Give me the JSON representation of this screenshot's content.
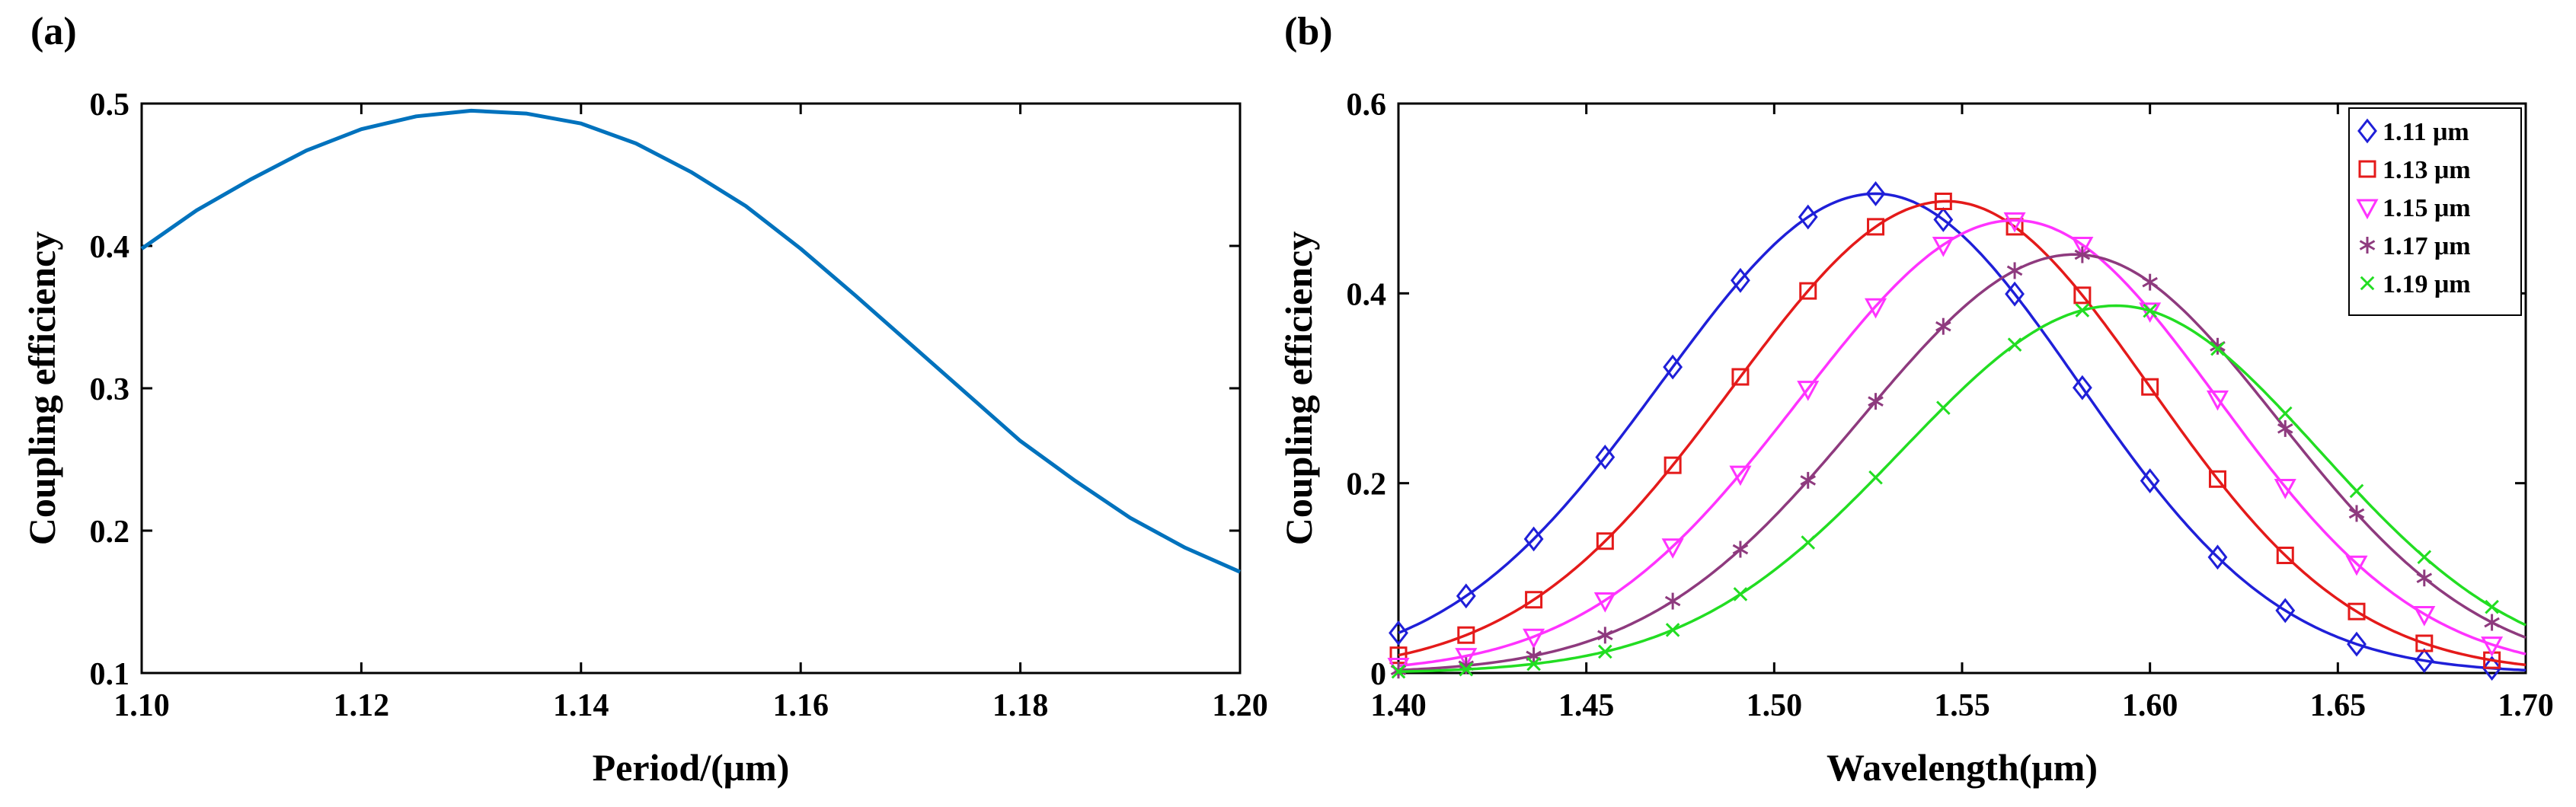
{
  "chart_data": [
    {
      "panel_label": "(a)",
      "type": "line",
      "xlabel": "Period/(μm)",
      "ylabel": "Coupling efficiency",
      "xlim": [
        1.1,
        1.2
      ],
      "ylim": [
        0.1,
        0.5
      ],
      "xticks": [
        "1.10",
        "1.12",
        "1.14",
        "1.16",
        "1.18",
        "1.20"
      ],
      "yticks": [
        "0.1",
        "0.2",
        "0.3",
        "0.4",
        "0.5"
      ],
      "series": [
        {
          "name": "Coupling efficiency",
          "color": "#0072BD",
          "x": [
            1.1,
            1.105,
            1.11,
            1.115,
            1.12,
            1.125,
            1.13,
            1.135,
            1.14,
            1.145,
            1.15,
            1.155,
            1.16,
            1.165,
            1.17,
            1.175,
            1.18,
            1.185,
            1.19,
            1.195,
            1.2
          ],
          "y": [
            0.398,
            0.425,
            0.447,
            0.467,
            0.482,
            0.491,
            0.495,
            0.493,
            0.486,
            0.472,
            0.452,
            0.428,
            0.398,
            0.365,
            0.331,
            0.297,
            0.263,
            0.235,
            0.209,
            0.188,
            0.171
          ]
        }
      ]
    },
    {
      "panel_label": "(b)",
      "type": "line",
      "xlabel": "Wavelength(μm)",
      "ylabel": "Coupling efficiency",
      "xlim": [
        1.4,
        1.7
      ],
      "ylim": [
        0,
        0.6
      ],
      "xticks": [
        "1.40",
        "1.45",
        "1.50",
        "1.55",
        "1.60",
        "1.65",
        "1.70"
      ],
      "yticks": [
        "0",
        "0.2",
        "0.4",
        "0.6"
      ],
      "legend_position": "top-right",
      "series": [
        {
          "name": "1.11 μm",
          "color": "#1F1FD8",
          "marker": "diamond",
          "center": 1.527,
          "peak": 0.505
        },
        {
          "name": "1.13 μm",
          "color": "#E41A1A",
          "marker": "square",
          "center": 1.546,
          "peak": 0.497
        },
        {
          "name": "1.15 μm",
          "color": "#FF33FF",
          "marker": "triangle-down",
          "center": 1.564,
          "peak": 0.477
        },
        {
          "name": "1.17 μm",
          "color": "#8E3A7E",
          "marker": "asterisk",
          "center": 1.58,
          "peak": 0.441
        },
        {
          "name": "1.19 μm",
          "color": "#22DD22",
          "marker": "x",
          "center": 1.591,
          "peak": 0.387
        }
      ],
      "marker_x": [
        1.4,
        1.418,
        1.436,
        1.455,
        1.473,
        1.491,
        1.509,
        1.527,
        1.545,
        1.564,
        1.582,
        1.6,
        1.618,
        1.636,
        1.655,
        1.673,
        1.691
      ]
    }
  ]
}
